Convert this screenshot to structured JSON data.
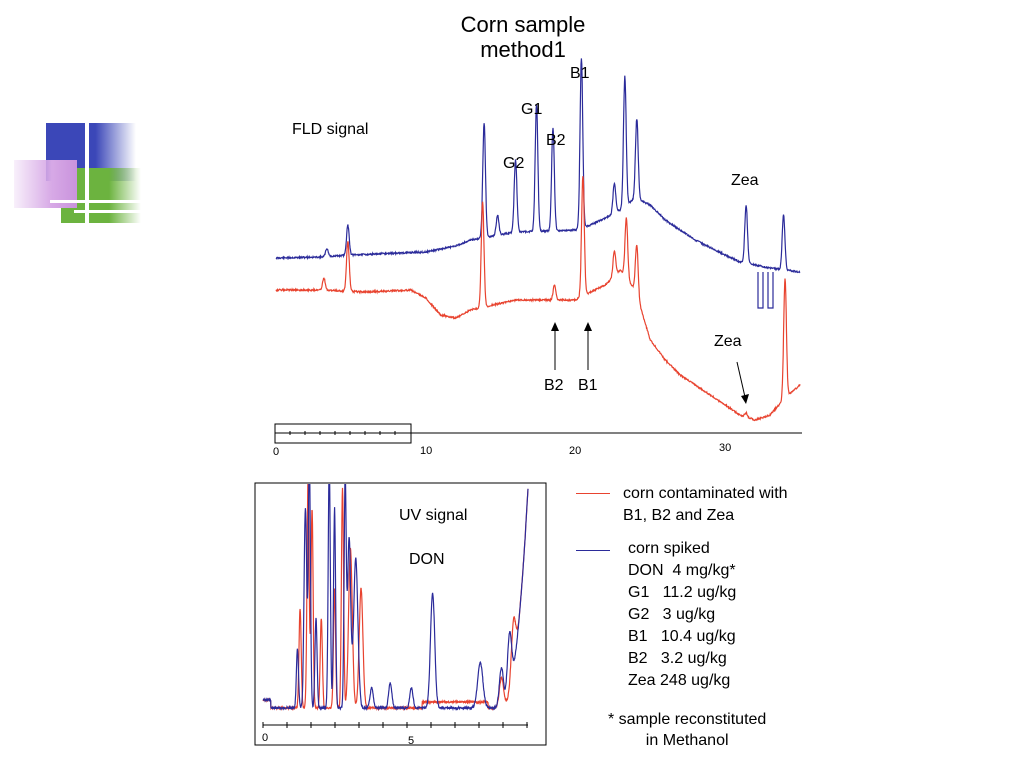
{
  "slide": {
    "title_line1": "Corn sample",
    "title_line2": "method1"
  },
  "colors": {
    "spiked": "#2b2b9a",
    "contaminated": "#e8432f",
    "deco_blue": "#3b47b8",
    "deco_green": "#6cb33f",
    "deco_pink": "#c9a0dc"
  },
  "chart_data": [
    {
      "type": "line",
      "title": "FLD signal",
      "xlim": [
        0,
        35
      ],
      "x_ticks": [
        "0",
        "10",
        "20",
        "30"
      ],
      "series": [
        {
          "name": "corn spiked",
          "color": "#2b2b9a",
          "baseline": [
            [
              0,
              258
            ],
            [
              3,
              257
            ],
            [
              5,
              255
            ],
            [
              10,
              252
            ],
            [
              12,
              246
            ],
            [
              13,
              240
            ],
            [
              16,
              232
            ],
            [
              20,
              230
            ],
            [
              21,
              225
            ],
            [
              22,
              218
            ],
            [
              23,
              210
            ],
            [
              24,
              198
            ],
            [
              25,
              205
            ],
            [
              26,
              220
            ],
            [
              28,
              240
            ],
            [
              30,
              255
            ],
            [
              31,
              262
            ],
            [
              32,
              265
            ],
            [
              33,
              268
            ],
            [
              35,
              272
            ]
          ],
          "peaks": [
            {
              "label": "",
              "x": 3.4,
              "height": 8
            },
            {
              "label": "",
              "x": 4.8,
              "height": 30
            },
            {
              "label": "",
              "x": 13.9,
              "height": 115
            },
            {
              "label": "",
              "x": 14.8,
              "height": 20
            },
            {
              "label": "G2",
              "x": 16.0,
              "height": 72
            },
            {
              "label": "G1",
              "x": 17.4,
              "height": 127
            },
            {
              "label": "B2",
              "x": 18.5,
              "height": 103
            },
            {
              "label": "B1",
              "x": 20.4,
              "height": 170
            },
            {
              "label": "",
              "x": 22.6,
              "height": 30
            },
            {
              "label": "",
              "x": 23.3,
              "height": 130
            },
            {
              "label": "",
              "x": 24.1,
              "height": 80
            },
            {
              "label": "Zea",
              "x": 31.4,
              "height": 58
            },
            {
              "label": "",
              "x": 33.9,
              "height": 55
            }
          ]
        },
        {
          "name": "corn contaminated with B1, B2 and Zea",
          "color": "#e8432f",
          "baseline": [
            [
              0,
              290
            ],
            [
              3,
              290
            ],
            [
              6,
              292
            ],
            [
              9,
              290
            ],
            [
              10,
              298
            ],
            [
              11,
              315
            ],
            [
              12,
              318
            ],
            [
              13,
              310
            ],
            [
              16,
              300
            ],
            [
              20,
              300
            ],
            [
              21,
              292
            ],
            [
              22,
              285
            ],
            [
              23,
              270
            ],
            [
              24,
              290
            ],
            [
              25,
              340
            ],
            [
              26,
              360
            ],
            [
              27,
              375
            ],
            [
              28,
              385
            ],
            [
              29,
              395
            ],
            [
              30,
              405
            ],
            [
              31,
              415
            ],
            [
              32,
              420
            ],
            [
              33,
              415
            ],
            [
              34,
              398
            ],
            [
              35,
              385
            ]
          ],
          "peaks": [
            {
              "label": "",
              "x": 3.2,
              "height": 12
            },
            {
              "label": "",
              "x": 4.8,
              "height": 50
            },
            {
              "label": "",
              "x": 13.8,
              "height": 105
            },
            {
              "label": "B2",
              "x": 18.6,
              "height": 15
            },
            {
              "label": "B1",
              "x": 20.5,
              "height": 120
            },
            {
              "label": "",
              "x": 22.6,
              "height": 25
            },
            {
              "label": "",
              "x": 23.4,
              "height": 60
            },
            {
              "label": "",
              "x": 24.1,
              "height": 50
            },
            {
              "label": "Zea",
              "x": 31.4,
              "height": 4
            },
            {
              "label": "",
              "x": 34.0,
              "height": 120
            }
          ]
        }
      ]
    },
    {
      "type": "line",
      "title": "UV signal",
      "annotation": "DON",
      "x_ticks": [
        "0",
        "5"
      ]
    }
  ],
  "fld_labels": {
    "signal": "FLD signal",
    "g2": "G2",
    "g1": "G1",
    "b2": "B2",
    "b1": "B1",
    "zea_top": "Zea",
    "zea_bottom": "Zea",
    "b2_bottom": "B2",
    "b1_bottom": "B1",
    "tick0": "0",
    "tick10": "10",
    "tick20": "20",
    "tick30": "30"
  },
  "uv_labels": {
    "signal": "UV signal",
    "don": "DON",
    "tick0": "0",
    "tick5": "5"
  },
  "legend": {
    "contaminated": [
      "corn contaminated with",
      "B1, B2 and Zea"
    ],
    "spiked": [
      "corn spiked",
      "DON  4 mg/kg*",
      "G1   11.2 ug/kg",
      "G2   3 ug/kg",
      "B1   10.4 ug/kg",
      "B2   3.2 ug/kg",
      "Zea 248 ug/kg"
    ]
  },
  "footnote": {
    "line1": "* sample reconstituted",
    "line2": "in Methanol"
  }
}
